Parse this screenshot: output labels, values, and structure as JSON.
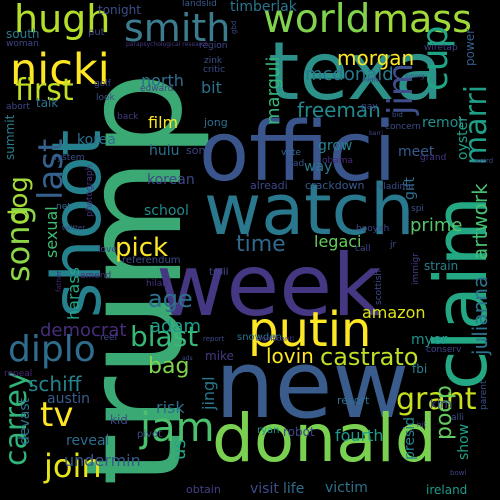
{
  "words": [
    {
      "text": "trump",
      "color": "#3ba974"
    },
    {
      "text": "week",
      "color": "#453782"
    },
    {
      "text": "new",
      "color": "#3a5c8c"
    },
    {
      "text": "donald",
      "color": "#7ad151"
    },
    {
      "text": "texa",
      "color": "#2b9189"
    },
    {
      "text": "offici",
      "color": "#3a548c"
    },
    {
      "text": "watch",
      "color": "#2a788e"
    },
    {
      "text": "claim",
      "color": "#23a883"
    },
    {
      "text": "shoot",
      "color": "#26818e"
    },
    {
      "text": "putin",
      "color": "#fde725"
    },
    {
      "text": "smith",
      "color": "#3b7c8e"
    },
    {
      "text": "world",
      "color": "#81d34d"
    },
    {
      "text": "mass",
      "color": "#a0da39"
    },
    {
      "text": "hugh",
      "color": "#b5de2b"
    },
    {
      "text": "nicki",
      "color": "#fde725"
    },
    {
      "text": "first",
      "color": "#c2df23"
    },
    {
      "text": "cup",
      "color": "#20a486"
    },
    {
      "text": "jim",
      "color": "#3d4e8a"
    },
    {
      "text": "song",
      "color": "#8bd646"
    },
    {
      "text": "last",
      "color": "#34618d"
    },
    {
      "text": "marri",
      "color": "#1f9e89"
    },
    {
      "text": "diplo",
      "color": "#2f6c8e"
    },
    {
      "text": "jam",
      "color": "#4ac16d"
    },
    {
      "text": "join",
      "color": "#e7e419"
    },
    {
      "text": "tv",
      "color": "#fde725"
    },
    {
      "text": "grant",
      "color": "#c8e020"
    },
    {
      "text": "carrey",
      "color": "#31b57b"
    },
    {
      "text": "castrato",
      "color": "#bddf26"
    },
    {
      "text": "time",
      "color": "#31688e"
    },
    {
      "text": "blast",
      "color": "#37b878"
    },
    {
      "text": "age",
      "color": "#2e6f8e"
    },
    {
      "text": "pick",
      "color": "#fde725"
    },
    {
      "text": "dog",
      "color": "#a5db36"
    },
    {
      "text": "adam",
      "color": "#1e9d89"
    },
    {
      "text": "freeman",
      "color": "#23898e"
    },
    {
      "text": "artwork",
      "color": "#46c06f"
    },
    {
      "text": "julianna",
      "color": "#2c738e"
    },
    {
      "text": "morgan",
      "color": "#fde725"
    },
    {
      "text": "mcdonald",
      "color": "#2a788e"
    },
    {
      "text": "poop",
      "color": "#65cb5e"
    },
    {
      "text": "amazon",
      "color": "#dde318"
    },
    {
      "text": "lovin",
      "color": "#fde725"
    },
    {
      "text": "democrat",
      "color": "#472d7b"
    },
    {
      "text": "schiff",
      "color": "#25838e"
    },
    {
      "text": "bag",
      "color": "#7fd34e"
    },
    {
      "text": "sexual",
      "color": "#3dbc74"
    },
    {
      "text": "harass",
      "color": "#22a785"
    },
    {
      "text": "legaci",
      "color": "#67cc5c"
    },
    {
      "text": "prime",
      "color": "#54c568"
    },
    {
      "text": "fourth",
      "color": "#1f9a8a"
    },
    {
      "text": "undermin",
      "color": "#38588c"
    },
    {
      "text": "devast",
      "color": "#2c718e"
    },
    {
      "text": "risk",
      "color": "#2e6e8e"
    },
    {
      "text": "us",
      "color": "#22a884"
    },
    {
      "text": "jingl",
      "color": "#29798e"
    },
    {
      "text": "marguli",
      "color": "#34b679"
    },
    {
      "text": "film",
      "color": "#fde725"
    },
    {
      "text": "north",
      "color": "#2e6f8e"
    },
    {
      "text": "bit",
      "color": "#2c718e"
    },
    {
      "text": "school",
      "color": "#228c8d"
    },
    {
      "text": "hulu",
      "color": "#2e6f8e"
    },
    {
      "text": "korea",
      "color": "#2d708e"
    },
    {
      "text": "korean",
      "color": "#404588"
    },
    {
      "text": "reveal",
      "color": "#2f6b8e"
    },
    {
      "text": "austin",
      "color": "#375b8d"
    },
    {
      "text": "kid",
      "color": "#3f4889"
    },
    {
      "text": "pivot",
      "color": "#3f4889"
    },
    {
      "text": "talk",
      "color": "#2c728e"
    },
    {
      "text": "grow",
      "color": "#26828e"
    },
    {
      "text": "meet",
      "color": "#375b8d"
    },
    {
      "text": "remot",
      "color": "#21908d"
    },
    {
      "text": "way",
      "color": "#2a788e"
    },
    {
      "text": "myer",
      "color": "#1f948c"
    },
    {
      "text": "oyster",
      "color": "#1fa188"
    },
    {
      "text": "gift",
      "color": "#2c728e"
    },
    {
      "text": "show",
      "color": "#1fa287"
    },
    {
      "text": "fbi",
      "color": "#26818e"
    },
    {
      "text": "presid",
      "color": "#25858e"
    },
    {
      "text": "kim",
      "color": "#3e4989"
    },
    {
      "text": "ireland",
      "color": "#1e9b8a"
    },
    {
      "text": "victim",
      "color": "#2d718e"
    },
    {
      "text": "life",
      "color": "#2f6c8e"
    },
    {
      "text": "visit",
      "color": "#3e4c8a"
    },
    {
      "text": "obtain",
      "color": "#424086"
    },
    {
      "text": "robot",
      "color": "#404688"
    },
    {
      "text": "ryan",
      "color": "#20938c"
    },
    {
      "text": "resort",
      "color": "#2e6e8e"
    },
    {
      "text": "snowden",
      "color": "#2b748e"
    },
    {
      "text": "mike",
      "color": "#443983"
    },
    {
      "text": "alreadi",
      "color": "#3f4788"
    },
    {
      "text": "crackdown",
      "color": "#38598c"
    },
    {
      "text": "jong",
      "color": "#2e6e8e"
    },
    {
      "text": "son",
      "color": "#404387"
    },
    {
      "text": "timberlak",
      "color": "#2b758e"
    },
    {
      "text": "tonight",
      "color": "#3c508b"
    },
    {
      "text": "landslid",
      "color": "#38598c"
    },
    {
      "text": "region",
      "color": "#3f4788"
    },
    {
      "text": "critic",
      "color": "#3b518b"
    },
    {
      "text": "zink",
      "color": "#3b528b"
    },
    {
      "text": "edward",
      "color": "#424086"
    },
    {
      "text": "south",
      "color": "#287c8e"
    },
    {
      "text": "put",
      "color": "#3f4788"
    },
    {
      "text": "woman",
      "color": "#404588"
    },
    {
      "text": "golf",
      "color": "#3e4989"
    },
    {
      "text": "look",
      "color": "#3c4f8a"
    },
    {
      "text": "abort",
      "color": "#3f4788"
    },
    {
      "text": "back",
      "color": "#443a83"
    },
    {
      "text": "summit",
      "color": "#277f8e"
    },
    {
      "text": "system",
      "color": "#3a538b"
    },
    {
      "text": "photograph",
      "color": "#453581"
    },
    {
      "text": "net",
      "color": "#31678e"
    },
    {
      "text": "love",
      "color": "#404588"
    },
    {
      "text": "referendum",
      "color": "#3e4a89"
    },
    {
      "text": "hilari",
      "color": "#46307e"
    },
    {
      "text": "amend",
      "color": "#472c7a"
    },
    {
      "text": "father",
      "color": "#482475"
    },
    {
      "text": "troll",
      "color": "#3f4889"
    },
    {
      "text": "booyah",
      "color": "#3f4889"
    },
    {
      "text": "call",
      "color": "#404688"
    },
    {
      "text": "jr",
      "color": "#3b528b"
    },
    {
      "text": "spi",
      "color": "#3d4e8a"
    },
    {
      "text": "vladimir",
      "color": "#3e4c8a"
    },
    {
      "text": "scottish",
      "color": "#3d4d8a"
    },
    {
      "text": "immigr",
      "color": "#424186"
    },
    {
      "text": "strain",
      "color": "#27808e"
    },
    {
      "text": "reel",
      "color": "#3f4889"
    },
    {
      "text": "repeal",
      "color": "#482878"
    },
    {
      "text": "conserv",
      "color": "#414487"
    },
    {
      "text": "grand",
      "color": "#453581"
    },
    {
      "text": "concern",
      "color": "#3c4f8a"
    },
    {
      "text": "wiretap",
      "color": "#433e85"
    },
    {
      "text": "power",
      "color": "#355f8d"
    },
    {
      "text": "obama",
      "color": "#472c7a"
    },
    {
      "text": "vote",
      "color": "#31668e"
    },
    {
      "text": "lead",
      "color": "#3b528b"
    },
    {
      "text": "twitter",
      "color": "#3c4f8a"
    },
    {
      "text": "parent",
      "color": "#3c508b"
    },
    {
      "text": "alli",
      "color": "#3c4f8a"
    },
    {
      "text": "weird",
      "color": "#3f4788"
    },
    {
      "text": "bid",
      "color": "#3b518b"
    },
    {
      "text": "pay",
      "color": "#3f4889"
    },
    {
      "text": "hit",
      "color": "#3f4889"
    },
    {
      "text": "significantl",
      "color": "#463480"
    },
    {
      "text": "report",
      "color": "#3e4a89"
    },
    {
      "text": "midnit",
      "color": "#3f4788"
    },
    {
      "text": "barri",
      "color": "#414487"
    },
    {
      "text": "gbd",
      "color": "#3e4a89"
    },
    {
      "text": "ads",
      "color": "#3d4d8a"
    },
    {
      "text": "parapsychological research",
      "color": "#453882"
    },
    {
      "text": "emerg",
      "color": "#3b518b"
    },
    {
      "text": "bowl",
      "color": "#414287"
    }
  ]
}
